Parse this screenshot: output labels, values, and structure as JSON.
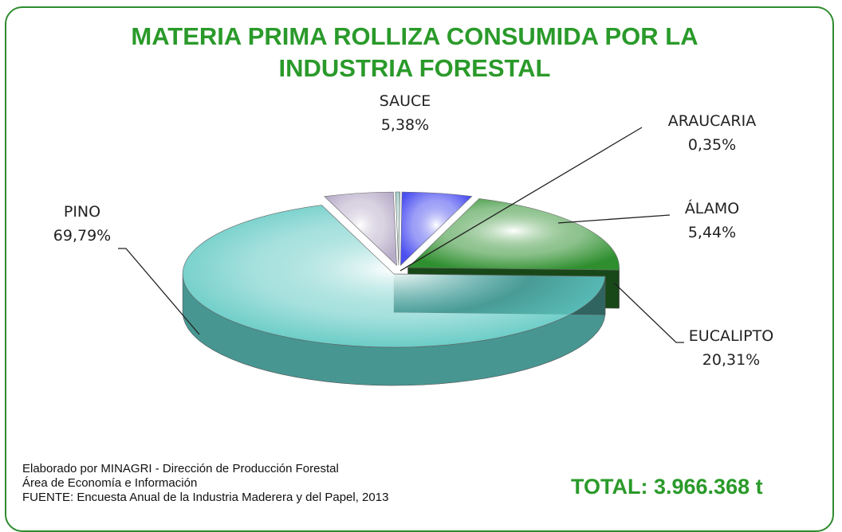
{
  "chart_data": {
    "type": "pie",
    "title": "MATERIA PRIMA ROLLIZA CONSUMIDA POR LA INDUSTRIA FORESTAL",
    "categories": [
      "SAUCE",
      "ARAUCARIA",
      "ÁLAMO",
      "EUCALIPTO",
      "PINO"
    ],
    "values": [
      5.38,
      0.35,
      5.44,
      20.31,
      69.79
    ],
    "value_labels": [
      "5,38%",
      "0,35%",
      "5,44%",
      "20,31%",
      "69,79%"
    ],
    "colors": [
      "#b8adc8",
      "#8fbfb8",
      "#4b4ff0",
      "#2f8f2f",
      "#5ec8c2"
    ],
    "notes": [
      "Elaborado por MINAGRI - Dirección de Producción Forestal",
      "Área de Economía e Información",
      "FUENTE: Encuesta Anual de la Industria Maderera y del Papel, 2013"
    ],
    "total": "TOTAL:  3.966.368 t"
  }
}
